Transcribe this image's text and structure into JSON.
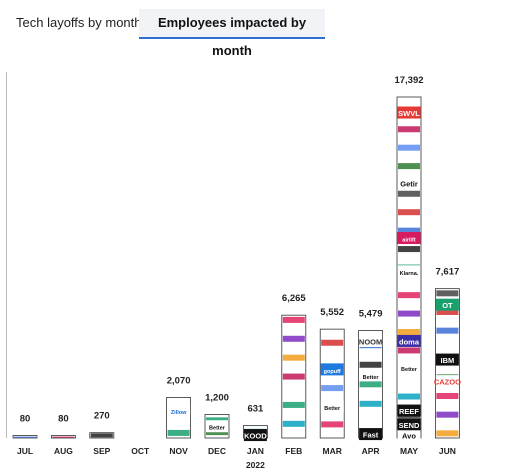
{
  "tabs": [
    {
      "label": "Tech layoffs by month",
      "selected": false
    },
    {
      "label": "Employees impacted by month",
      "selected": true
    }
  ],
  "colors": {
    "accent": "#2f6fd1",
    "bar_outline": "#333333",
    "tab_bg": "#f1f3f6"
  },
  "chart_data": {
    "type": "bar",
    "title": "",
    "xlabel": "",
    "ylabel": "",
    "categories": [
      "JUL",
      "AUG",
      "SEP",
      "OCT",
      "NOV",
      "DEC",
      "JAN",
      "FEB",
      "MAR",
      "APR",
      "MAY",
      "JUN"
    ],
    "year_label": "2022",
    "year_label_category": "JAN",
    "values": [
      80,
      80,
      270,
      0,
      2070,
      1200,
      631,
      6265,
      5552,
      5479,
      17392,
      7617
    ],
    "value_labels": [
      "80",
      "80",
      "270",
      "",
      "2,070",
      "1,200",
      "631",
      "6,265",
      "5,552",
      "5,479",
      "17,392",
      "7,617"
    ],
    "ylim": [
      0,
      17392
    ],
    "grid": false,
    "legend": "none",
    "logo_texts": [
      {
        "category": "NOV",
        "text": "Zillow",
        "value": 1400
      },
      {
        "category": "DEC",
        "text": "Better",
        "value": 600
      },
      {
        "category": "JAN",
        "text": "KOOD",
        "value": 150
      },
      {
        "category": "MAR",
        "text": "Better",
        "value": 1600
      },
      {
        "category": "MAR",
        "text": "gopuff",
        "value": 3500
      },
      {
        "category": "APR",
        "text": "NOOM",
        "value": 4950
      },
      {
        "category": "APR",
        "text": "Better",
        "value": 3200
      },
      {
        "category": "APR",
        "text": "Fast",
        "value": 200
      },
      {
        "category": "MAY",
        "text": "Getir",
        "value": 13000
      },
      {
        "category": "MAY",
        "text": "Better",
        "value": 3600
      },
      {
        "category": "MAY",
        "text": "Avo",
        "value": 150
      },
      {
        "category": "MAY",
        "text": "REEF",
        "value": 1400
      },
      {
        "category": "MAY",
        "text": "SEND",
        "value": 700
      },
      {
        "category": "MAY",
        "text": "doma",
        "value": 4950
      },
      {
        "category": "MAY",
        "text": "Klarna.",
        "value": 8500
      },
      {
        "category": "MAY",
        "text": "SWVL",
        "value": 16600
      },
      {
        "category": "MAY",
        "text": "airlift",
        "value": 10200
      },
      {
        "category": "JUN",
        "text": "OT",
        "value": 6800
      },
      {
        "category": "JUN",
        "text": "IBM",
        "value": 4000
      },
      {
        "category": "JUN",
        "text": "CAZOO",
        "value": 2900
      }
    ]
  }
}
